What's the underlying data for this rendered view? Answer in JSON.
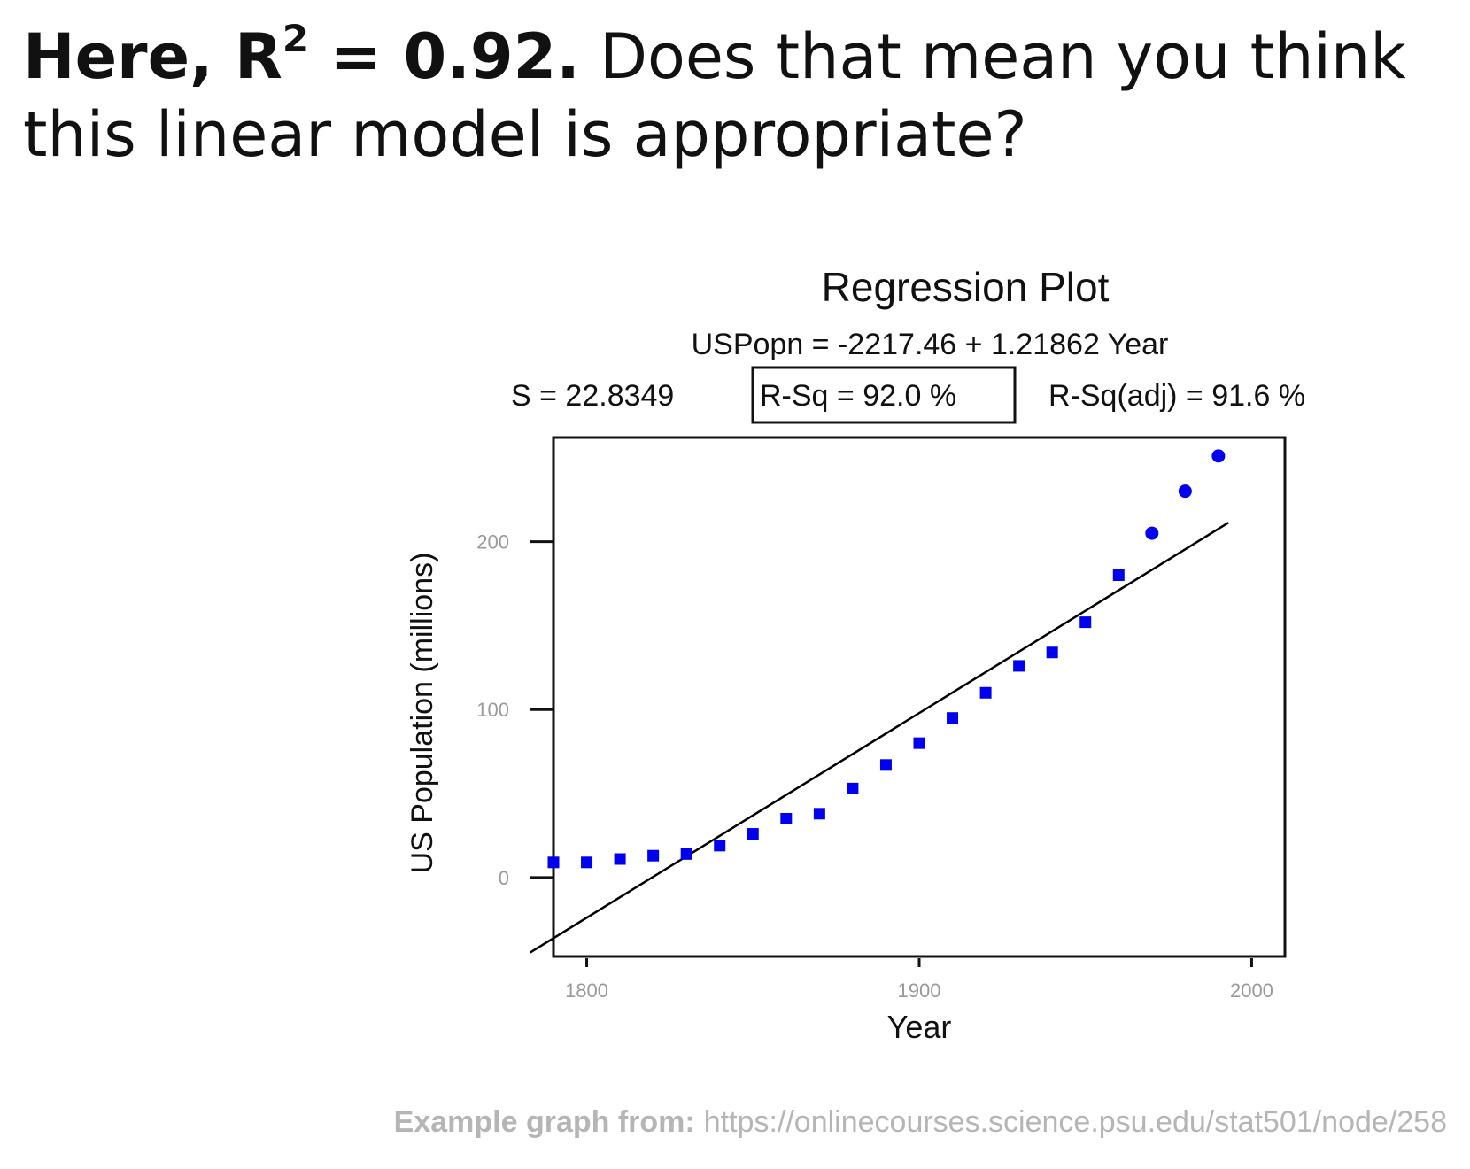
{
  "heading": {
    "lead_prefix": "Here, R",
    "lead_sup": "2",
    "lead_suffix": " = 0.92.",
    "question": " Does that mean you think this linear model is appropriate?"
  },
  "chart_data": {
    "type": "scatter",
    "title": "Regression Plot",
    "equation": "USPopn = -2217.46 + 1.21862 Year",
    "stats": {
      "s": "S = 22.8349",
      "rsq": "R-Sq = 92.0 %",
      "rsq_adj": "R-Sq(adj) = 91.6 %"
    },
    "xlabel": "Year",
    "ylabel": "US Population (millions)",
    "xlim": [
      1790,
      2010
    ],
    "ylim": [
      -47,
      262
    ],
    "xticks": [
      1800,
      1900,
      2000
    ],
    "yticks": [
      0,
      100,
      200
    ],
    "grid": false,
    "series": [
      {
        "x": [
          1790,
          1800,
          1810,
          1820,
          1830,
          1840,
          1850,
          1860,
          1870,
          1880,
          1890,
          1900,
          1910,
          1920,
          1930,
          1940,
          1950,
          1960,
          1970,
          1980,
          1990
        ],
        "y": [
          9,
          9,
          11,
          13,
          14,
          19,
          26,
          35,
          38,
          53,
          67,
          80,
          95,
          110,
          126,
          134,
          152,
          180,
          205,
          230,
          251
        ]
      }
    ],
    "fit_line": {
      "intercept": -2217.46,
      "slope": 1.21862,
      "x_range": [
        1783,
        1993
      ]
    }
  },
  "caption": {
    "label": "Example graph from:",
    "url": "https://onlinecourses.science.psu.edu/stat501/node/258"
  },
  "colors": {
    "points": "#0000ee",
    "line": "#000000",
    "ticklabel": "#999999",
    "caption": "#b5b5b5"
  }
}
